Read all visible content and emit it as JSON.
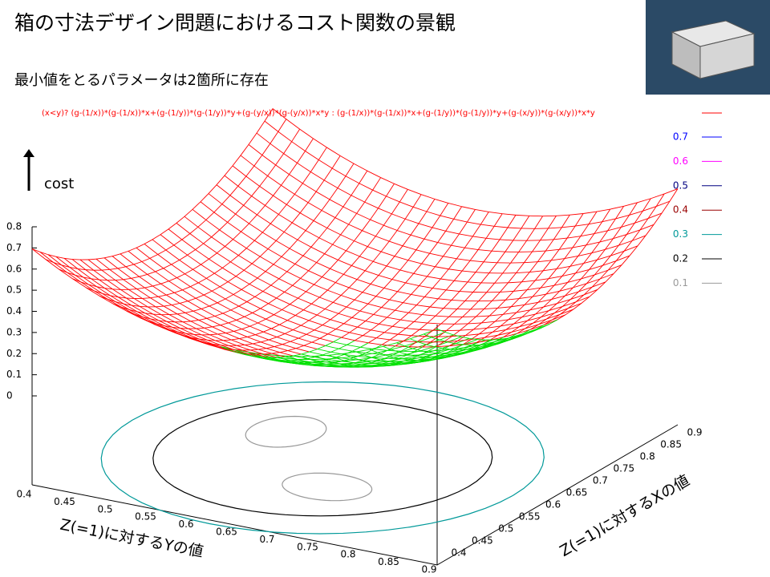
{
  "header": {
    "title": "箱の寸法デザイン問題におけるコスト関数の景観",
    "subtitle": "最小値をとるパラメータは2箇所に存在"
  },
  "plot": {
    "z_label": "cost",
    "legend": {
      "formula": "(x<y)? (g-(1/x))*(g-(1/x))*x+(g-(1/y))*(g-(1/y))*y+(g-(y/x))*(g-(y/x))*x*y : (g-(1/x))*(g-(1/x))*x+(g-(1/y))*(g-(1/y))*y+(g-(x/y))*(g-(x/y))*x*y",
      "formula_color": "#ff0000",
      "levels": [
        0.7,
        0.6,
        0.5,
        0.4,
        0.3,
        0.2,
        0.1
      ],
      "level_colors": [
        "#0000ff",
        "#ff00ff",
        "#000080",
        "#990000",
        "#009999",
        "#000000",
        "#999999"
      ]
    },
    "z_ticks": [
      0.8,
      0.7,
      0.6,
      0.5,
      0.4,
      0.3,
      0.2,
      0.1,
      0
    ],
    "y_ticks": [
      0.4,
      0.45,
      0.5,
      0.55,
      0.6,
      0.65,
      0.7,
      0.75,
      0.8,
      0.85,
      0.9
    ],
    "x_ticks": [
      0.4,
      0.45,
      0.5,
      0.55,
      0.6,
      0.65,
      0.7,
      0.75,
      0.8,
      0.85,
      0.9
    ],
    "y_axis_label": "Z(=1)に対するYの値",
    "x_axis_label": "Z(=1)に対するXの値"
  }
}
